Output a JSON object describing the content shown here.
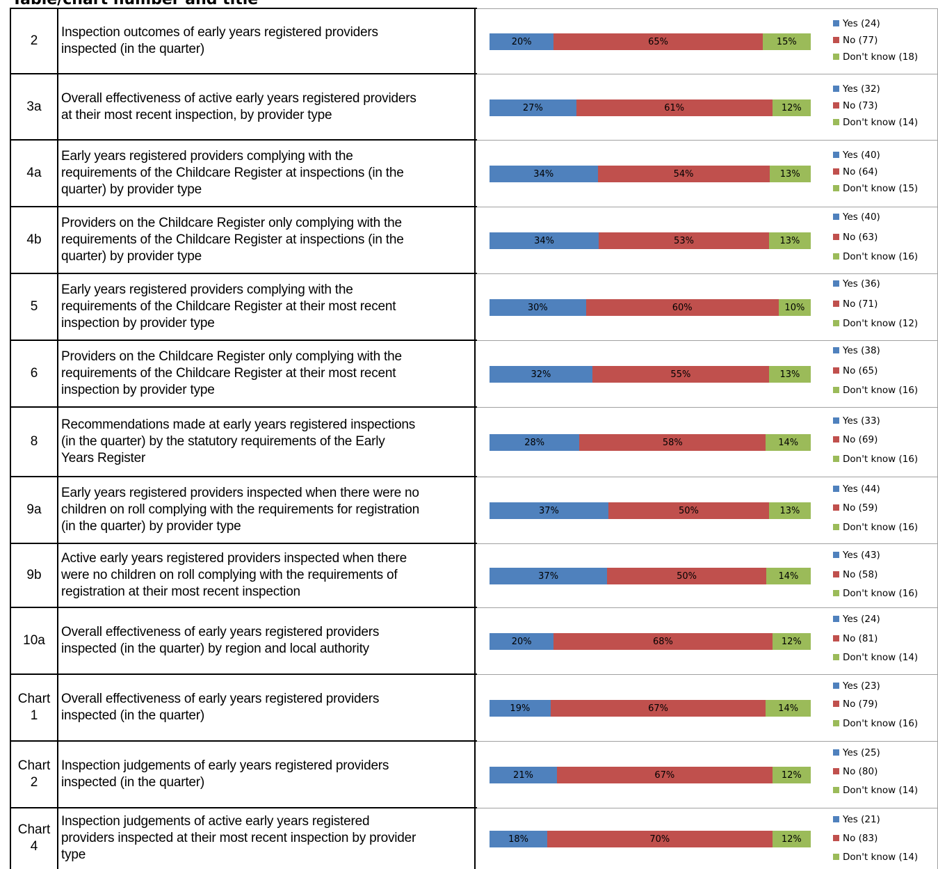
{
  "header": {
    "title": "Table/chart number and title"
  },
  "colors": {
    "yes": "#4f81bd",
    "no": "#c0504d",
    "dont_know": "#9bbb59"
  },
  "chart_data": {
    "type": "bar",
    "orientation": "horizontal",
    "stacked": true,
    "normalized": true,
    "series_names": [
      "Yes",
      "No",
      "Don't know"
    ],
    "rows": [
      {
        "id": "2",
        "title": [
          "Inspection outcomes of early years registered providers",
          "inspected (in the quarter)"
        ],
        "pct": [
          20,
          65,
          15
        ],
        "pct_labels": [
          "20%",
          "65%",
          "15%"
        ],
        "legend": [
          "Yes (24)",
          "No (77)",
          "Don't know (18)"
        ],
        "counts": [
          24,
          77,
          18
        ]
      },
      {
        "id": "3a",
        "title": [
          "Overall effectiveness of active early years registered providers",
          "at their most recent inspection, by provider type"
        ],
        "pct": [
          27,
          61,
          12
        ],
        "pct_labels": [
          "27%",
          "61%",
          "12%"
        ],
        "legend": [
          "Yes (32)",
          "No (73)",
          "Don't know (14)"
        ],
        "counts": [
          32,
          73,
          14
        ]
      },
      {
        "id": "4a",
        "title": [
          "Early years registered providers complying with the",
          "requirements of the Childcare Register at inspections (in the",
          "quarter) by provider type"
        ],
        "pct": [
          34,
          54,
          13
        ],
        "pct_labels": [
          "34%",
          "54%",
          "13%"
        ],
        "legend": [
          "Yes (40)",
          "No (64)",
          "Don't know (15)"
        ],
        "counts": [
          40,
          64,
          15
        ]
      },
      {
        "id": "4b",
        "title": [
          "Providers on the Childcare Register only complying with the",
          "requirements of the Childcare Register at inspections (in the",
          "quarter) by provider type"
        ],
        "pct": [
          34,
          53,
          13
        ],
        "pct_labels": [
          "34%",
          "53%",
          "13%"
        ],
        "legend": [
          "Yes (40)",
          "No (63)",
          "Don't know (16)"
        ],
        "counts": [
          40,
          63,
          16
        ]
      },
      {
        "id": "5",
        "title": [
          "Early years registered providers complying with the",
          "requirements of the Childcare Register at their most recent",
          "inspection by provider type"
        ],
        "pct": [
          30,
          60,
          10
        ],
        "pct_labels": [
          "30%",
          "60%",
          "10%"
        ],
        "legend": [
          "Yes (36)",
          "No (71)",
          "Don't know (12)"
        ],
        "counts": [
          36,
          71,
          12
        ]
      },
      {
        "id": "6",
        "title": [
          "Providers on the Childcare Register only complying with the",
          "requirements of the Childcare Register at their most recent",
          "inspection by provider type"
        ],
        "pct": [
          32,
          55,
          13
        ],
        "pct_labels": [
          "32%",
          "55%",
          "13%"
        ],
        "legend": [
          "Yes (38)",
          "No (65)",
          "Don't know (16)"
        ],
        "counts": [
          38,
          65,
          16
        ]
      },
      {
        "id": "8",
        "title": [
          "Recommendations made at early years registered inspections",
          "(in the quarter) by the statutory requirements of the Early",
          "Years Register"
        ],
        "pct": [
          28,
          58,
          14
        ],
        "pct_labels": [
          "28%",
          "58%",
          "14%"
        ],
        "legend": [
          "Yes (33)",
          "No (69)",
          "Don't know (16)"
        ],
        "counts": [
          33,
          69,
          16
        ]
      },
      {
        "id": "9a",
        "title": [
          "Early years registered providers inspected when there were no",
          "children on roll complying with the requirements for registration",
          "(in the quarter) by provider type"
        ],
        "pct": [
          37,
          50,
          13
        ],
        "pct_labels": [
          "37%",
          "50%",
          "13%"
        ],
        "legend": [
          "Yes (44)",
          "No (59)",
          "Don't know (16)"
        ],
        "counts": [
          44,
          59,
          16
        ]
      },
      {
        "id": "9b",
        "title": [
          "Active early years registered providers inspected when there",
          "were no children on roll complying with the requirements of",
          "registration at their most recent inspection"
        ],
        "pct": [
          37,
          50,
          14
        ],
        "pct_labels": [
          "37%",
          "50%",
          "14%"
        ],
        "legend": [
          "Yes (43)",
          "No (58)",
          "Don't know (16)"
        ],
        "counts": [
          43,
          58,
          16
        ]
      },
      {
        "id": "10a",
        "title": [
          "Overall effectiveness of early years registered providers",
          "inspected (in the quarter) by region and local authority"
        ],
        "pct": [
          20,
          68,
          12
        ],
        "pct_labels": [
          "20%",
          "68%",
          "12%"
        ],
        "legend": [
          "Yes (24)",
          "No (81)",
          "Don't know (14)"
        ],
        "counts": [
          24,
          81,
          14
        ]
      },
      {
        "id": "Chart 1",
        "title": [
          "Overall effectiveness of early years registered providers",
          "inspected (in the quarter)"
        ],
        "pct": [
          19,
          67,
          14
        ],
        "pct_labels": [
          "19%",
          "67%",
          "14%"
        ],
        "legend": [
          "Yes (23)",
          "No (79)",
          "Don't know (16)"
        ],
        "counts": [
          23,
          79,
          16
        ]
      },
      {
        "id": "Chart 2",
        "title": [
          "Inspection judgements of early years registered providers",
          "inspected (in the quarter)"
        ],
        "pct": [
          21,
          67,
          12
        ],
        "pct_labels": [
          "21%",
          "67%",
          "12%"
        ],
        "legend": [
          "Yes (25)",
          "No (80)",
          "Don't know (14)"
        ],
        "counts": [
          25,
          80,
          14
        ]
      },
      {
        "id": "Chart 4",
        "title": [
          "Inspection judgements of active early years registered",
          "providers inspected at their most recent inspection by provider",
          "type"
        ],
        "pct": [
          18,
          70,
          12
        ],
        "pct_labels": [
          "18%",
          "70%",
          "12%"
        ],
        "legend": [
          "Yes (21)",
          "No (83)",
          "Don't know (14)"
        ],
        "counts": [
          21,
          83,
          14
        ]
      }
    ]
  }
}
